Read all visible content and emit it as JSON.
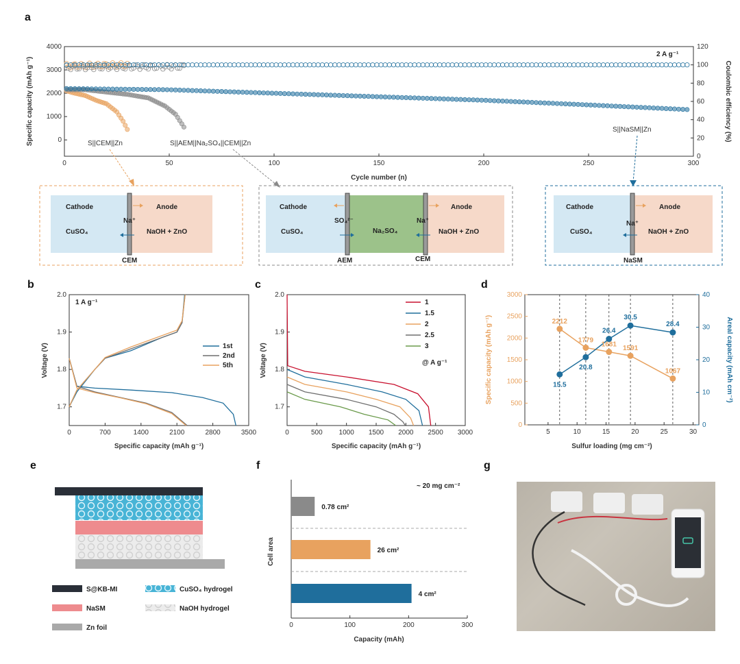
{
  "panels": {
    "a": "a",
    "b": "b",
    "c": "c",
    "d": "d",
    "e": "e",
    "f": "f",
    "g": "g"
  },
  "colors": {
    "orange": "#e8a25f",
    "gray": "#8a8a8a",
    "blue": "#1f6e9c",
    "cathode": "#d4e8f3",
    "anode": "#f6d9c9",
    "middle": "#9cc28a",
    "red": "#e88f8f"
  },
  "chart_data": [
    {
      "id": "a",
      "type": "scatter",
      "xlabel": "Cycle number (n)",
      "ylabel": "Specific capacity (mAh g⁻¹)",
      "y2label": "Coulombic efficiency (%)",
      "xlim": [
        0,
        300
      ],
      "ylim": [
        -700,
        4000
      ],
      "y2lim": [
        0,
        120
      ],
      "xticks": [
        "0",
        "50",
        "100",
        "150",
        "200",
        "250",
        "300"
      ],
      "yticks": [
        "0",
        "1000",
        "2000",
        "3000",
        "4000"
      ],
      "y2ticks": [
        "0",
        "20",
        "40",
        "60",
        "80",
        "100",
        "120"
      ],
      "annotation": "2 A g⁻¹",
      "series": [
        {
          "name": "S||CEM||Zn",
          "color": "#e8a25f",
          "end_cycle": 30,
          "capacity": [
            [
              1,
              2100
            ],
            [
              5,
              2000
            ],
            [
              10,
              1900
            ],
            [
              15,
              1700
            ],
            [
              20,
              1550
            ],
            [
              25,
              1200
            ],
            [
              28,
              800
            ],
            [
              30,
              450
            ]
          ],
          "ce": [
            [
              1,
              99
            ],
            [
              30,
              100
            ]
          ]
        },
        {
          "name": "S||AEM||Na₂SO₄||CEM||Zn",
          "color": "#8a8a8a",
          "end_cycle": 57,
          "capacity": [
            [
              1,
              2150
            ],
            [
              10,
              2150
            ],
            [
              20,
              2050
            ],
            [
              30,
              1950
            ],
            [
              40,
              1800
            ],
            [
              48,
              1450
            ],
            [
              53,
              1100
            ],
            [
              57,
              550
            ]
          ],
          "ce": [
            [
              1,
              97
            ],
            [
              57,
              98
            ]
          ]
        },
        {
          "name": "S||NaSM||Zn",
          "color": "#1f6e9c",
          "end_cycle": 297,
          "capacity": [
            [
              1,
              2200
            ],
            [
              50,
              2150
            ],
            [
              100,
              2000
            ],
            [
              150,
              1850
            ],
            [
              200,
              1700
            ],
            [
              250,
              1500
            ],
            [
              297,
              1300
            ]
          ],
          "ce": [
            [
              1,
              100
            ],
            [
              297,
              100
            ]
          ]
        }
      ]
    },
    {
      "id": "b",
      "type": "line",
      "xlabel": "Specific capacity (mAh g⁻¹)",
      "ylabel": "Voltage (V)",
      "xlim": [
        0,
        3500
      ],
      "ylim": [
        1.65,
        2.0
      ],
      "xticks": [
        "0",
        "700",
        "1400",
        "2100",
        "2800",
        "3500"
      ],
      "yticks": [
        "1.7",
        "1.8",
        "1.9",
        "2.0"
      ],
      "annotation": "1 A g⁻¹",
      "series": [
        {
          "name": "1st",
          "color": "#1f6e9c",
          "discharge": [
            [
              0,
              1.83
            ],
            [
              150,
              1.755
            ],
            [
              500,
              1.75
            ],
            [
              1200,
              1.745
            ],
            [
              2000,
              1.738
            ],
            [
              2600,
              1.725
            ],
            [
              3000,
              1.71
            ],
            [
              3200,
              1.68
            ],
            [
              3250,
              1.65
            ]
          ],
          "charge": [
            [
              0,
              1.7
            ],
            [
              150,
              1.74
            ],
            [
              500,
              1.8
            ],
            [
              700,
              1.83
            ],
            [
              1200,
              1.85
            ],
            [
              1800,
              1.885
            ],
            [
              2100,
              1.9
            ],
            [
              2200,
              1.925
            ],
            [
              2250,
              2.0
            ]
          ]
        },
        {
          "name": "2nd",
          "color": "#6e6e6e",
          "discharge": [
            [
              0,
              1.83
            ],
            [
              150,
              1.755
            ],
            [
              500,
              1.74
            ],
            [
              1000,
              1.725
            ],
            [
              1500,
              1.71
            ],
            [
              2000,
              1.685
            ],
            [
              2300,
              1.65
            ]
          ],
          "charge": [
            [
              0,
              1.7
            ],
            [
              150,
              1.745
            ],
            [
              500,
              1.8
            ],
            [
              700,
              1.83
            ],
            [
              1200,
              1.855
            ],
            [
              1800,
              1.885
            ],
            [
              2100,
              1.9
            ],
            [
              2200,
              1.925
            ],
            [
              2260,
              2.0
            ]
          ]
        },
        {
          "name": "5th",
          "color": "#e8a25f",
          "discharge": [
            [
              0,
              1.83
            ],
            [
              150,
              1.75
            ],
            [
              500,
              1.738
            ],
            [
              1000,
              1.724
            ],
            [
              1500,
              1.708
            ],
            [
              2000,
              1.682
            ],
            [
              2280,
              1.65
            ]
          ],
          "charge": [
            [
              0,
              1.7
            ],
            [
              150,
              1.745
            ],
            [
              500,
              1.8
            ],
            [
              700,
              1.832
            ],
            [
              1200,
              1.86
            ],
            [
              1800,
              1.89
            ],
            [
              2100,
              1.905
            ],
            [
              2200,
              1.93
            ],
            [
              2260,
              2.0
            ]
          ]
        }
      ]
    },
    {
      "id": "c",
      "type": "line",
      "xlabel": "Specific capacity (mAh g⁻¹)",
      "ylabel": "Voltage (V)",
      "xlim": [
        0,
        3000
      ],
      "ylim": [
        1.65,
        2.0
      ],
      "xticks": [
        "0",
        "500",
        "1000",
        "1500",
        "2000",
        "2500",
        "3000"
      ],
      "yticks": [
        "1.7",
        "1.8",
        "1.9",
        "2.0"
      ],
      "legend_unit": "@ A g⁻¹",
      "series": [
        {
          "name": "1",
          "color": "#c8102e",
          "points": [
            [
              0,
              2.0
            ],
            [
              10,
              1.81
            ],
            [
              300,
              1.795
            ],
            [
              1000,
              1.78
            ],
            [
              1800,
              1.76
            ],
            [
              2200,
              1.735
            ],
            [
              2380,
              1.7
            ],
            [
              2420,
              1.65
            ]
          ]
        },
        {
          "name": "1.5",
          "color": "#1f6e9c",
          "points": [
            [
              0,
              1.8
            ],
            [
              300,
              1.78
            ],
            [
              1000,
              1.76
            ],
            [
              1600,
              1.74
            ],
            [
              2000,
              1.72
            ],
            [
              2220,
              1.69
            ],
            [
              2280,
              1.65
            ]
          ]
        },
        {
          "name": "2",
          "color": "#e8a25f",
          "points": [
            [
              0,
              1.78
            ],
            [
              300,
              1.76
            ],
            [
              1000,
              1.74
            ],
            [
              1500,
              1.72
            ],
            [
              1900,
              1.7
            ],
            [
              2080,
              1.67
            ],
            [
              2130,
              1.65
            ]
          ]
        },
        {
          "name": "2.5",
          "color": "#6e6e6e",
          "points": [
            [
              0,
              1.76
            ],
            [
              300,
              1.74
            ],
            [
              1000,
              1.72
            ],
            [
              1500,
              1.7
            ],
            [
              1800,
              1.68
            ],
            [
              1950,
              1.66
            ],
            [
              1990,
              1.65
            ]
          ]
        },
        {
          "name": "3",
          "color": "#6a9a4a",
          "points": [
            [
              0,
              1.74
            ],
            [
              300,
              1.72
            ],
            [
              900,
              1.7
            ],
            [
              1300,
              1.68
            ],
            [
              1700,
              1.665
            ],
            [
              1830,
              1.65
            ]
          ]
        }
      ]
    },
    {
      "id": "d",
      "type": "line",
      "xlabel": "Sulfur loading (mg cm⁻²)",
      "ylabel": "Specific capacity (mAh g⁻¹)",
      "y2label": "Areal capacity (mAh cm⁻²)",
      "xlim": [
        1,
        31
      ],
      "ylim": [
        0,
        3000
      ],
      "y2lim": [
        0,
        40
      ],
      "xticks": [
        "5",
        "10",
        "15",
        "20",
        "25",
        "30"
      ],
      "yticks": [
        "0",
        "500",
        "1000",
        "1500",
        "2000",
        "2500",
        "3000"
      ],
      "y2ticks": [
        "0",
        "10",
        "20",
        "30",
        "40"
      ],
      "x": [
        7,
        11.5,
        15.5,
        19.2,
        26.5
      ],
      "specific": [
        2212,
        1779,
        1681,
        1591,
        1067
      ],
      "specific_labels": [
        "2212",
        "1779",
        "1681",
        "1591",
        "1067"
      ],
      "areal": [
        15.5,
        20.8,
        26.4,
        30.5,
        28.4
      ],
      "areal_labels": [
        "15.5",
        "20.8",
        "26.4",
        "30.5",
        "28.4"
      ]
    },
    {
      "id": "f",
      "type": "bar",
      "xlabel": "Capacity (mAh)",
      "ylabel": "Cell area",
      "xlim": [
        0,
        300
      ],
      "xticks": [
        "0",
        "100",
        "200",
        "300"
      ],
      "note": "~ 20 mg cm⁻²",
      "categories": [
        "0.78 cm²",
        "26 cm²",
        "4 cm²"
      ],
      "values": [
        40,
        135,
        205
      ],
      "colors": [
        "#8a8a8a",
        "#e8a25f",
        "#1f6e9c"
      ]
    }
  ],
  "diagrams": {
    "cells": [
      {
        "cathode": "Cathode",
        "anode": "Anode",
        "cat_sol": "CuSO₄",
        "an_sol": "NaOH + ZnO",
        "ion": "Na⁺",
        "membrane": "CEM"
      },
      {
        "cathode": "Cathode",
        "anode": "Anode",
        "cat_sol": "CuSO₄",
        "an_sol": "NaOH + ZnO",
        "mid_sol": "Na₂SO₄",
        "ion1": "SO₄²⁻",
        "ion2": "Na⁺",
        "membrane1": "AEM",
        "membrane2": "CEM"
      },
      {
        "cathode": "Cathode",
        "anode": "Anode",
        "cat_sol": "CuSO₄",
        "an_sol": "NaOH + ZnO",
        "ion": "Na⁺",
        "membrane": "NaSM"
      }
    ]
  },
  "legend_e": [
    "S@KB-MI",
    "CuSO₄ hydrogel",
    "NaSM",
    "NaOH hydrogel",
    "Zn foil"
  ]
}
